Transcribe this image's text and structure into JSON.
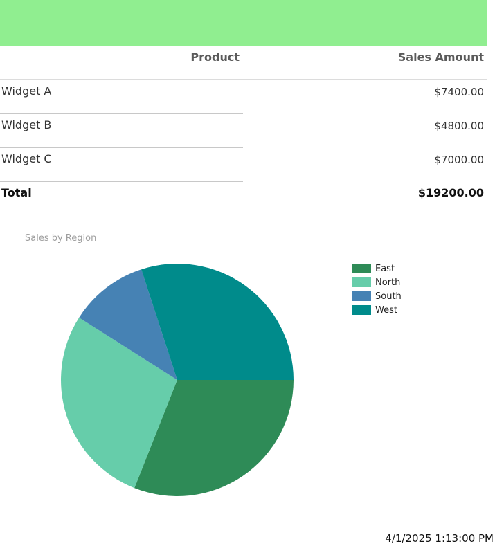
{
  "table": {
    "headers": {
      "product": "Product",
      "amount": "Sales Amount"
    },
    "rows": [
      {
        "product": "Widget A",
        "amount": "$7400.00"
      },
      {
        "product": "Widget B",
        "amount": "$4800.00"
      },
      {
        "product": "Widget C",
        "amount": "$7000.00"
      }
    ],
    "total": {
      "label": "Total",
      "amount": "$19200.00"
    }
  },
  "chart_data": {
    "type": "pie",
    "title": "Sales by Region",
    "categories": [
      "East",
      "North",
      "South",
      "West"
    ],
    "values": [
      31,
      28,
      11,
      30
    ],
    "colors": [
      "#2e8b57",
      "#66cdaa",
      "#4682b4",
      "#008b8b"
    ],
    "legend_position": "top-right"
  },
  "footer": {
    "timestamp": "4/1/2025 1:13:00 PM"
  },
  "colors": {
    "header": "#90ee90"
  }
}
